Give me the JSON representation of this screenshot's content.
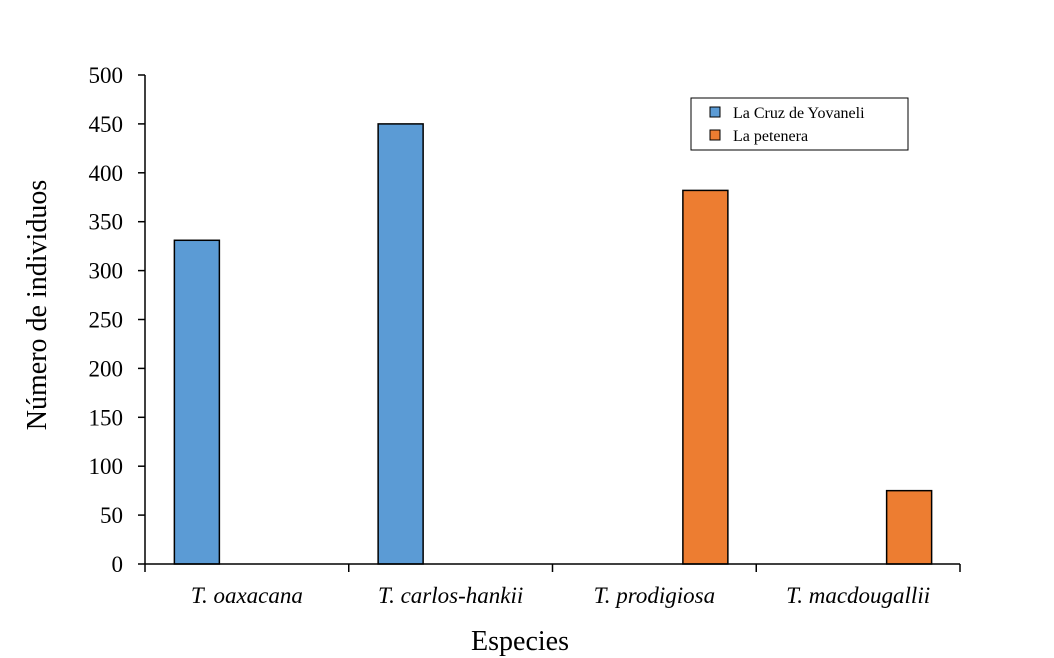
{
  "chart_data": {
    "type": "bar",
    "title": "",
    "xlabel": "Especies",
    "ylabel": "Número de individuos",
    "ylim": [
      0,
      500
    ],
    "yticks": [
      0,
      50,
      100,
      150,
      200,
      250,
      300,
      350,
      400,
      450,
      500
    ],
    "categories": [
      "T. oaxacana",
      "T. carlos-hankii",
      "T. prodigiosa",
      "T. macdougallii"
    ],
    "series": [
      {
        "name": "La Cruz de Yovaneli",
        "color": "#5B9BD5",
        "values": [
          331,
          450,
          0,
          0
        ]
      },
      {
        "name": "La petenera",
        "color": "#ED7D31",
        "values": [
          0,
          0,
          382,
          75
        ]
      }
    ],
    "legend": {
      "position": "top-right"
    },
    "grid": false
  }
}
